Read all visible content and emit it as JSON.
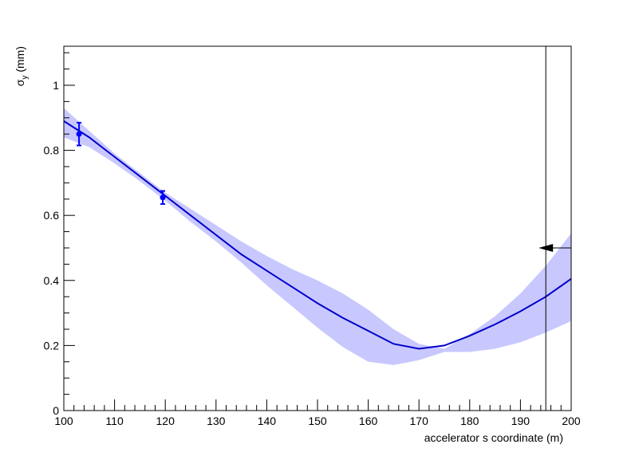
{
  "chart_data": {
    "type": "line",
    "xlabel": "accelerator s coordinate (m)",
    "ylabel": {
      "symbol": "σ",
      "subscript": "y",
      "unit": "(mm)"
    },
    "xlim": [
      100,
      200
    ],
    "ylim": [
      0,
      1.12
    ],
    "x_ticks": [
      100,
      110,
      120,
      130,
      140,
      150,
      160,
      170,
      180,
      190,
      200
    ],
    "y_ticks": [
      0,
      0.2,
      0.4,
      0.6,
      0.8,
      1
    ],
    "y_tick_labels": [
      "0",
      "0.2",
      "0.4",
      "0.6",
      "0.8",
      "1"
    ],
    "grid": false,
    "colors": {
      "line": "#0000cc",
      "band": "#c8c8ff",
      "marker": "#0000ff",
      "arrow": "#000000"
    },
    "series": [
      {
        "type": "line",
        "x": [
          100,
          105,
          110,
          115,
          120,
          125,
          130,
          135,
          140,
          145,
          150,
          155,
          160,
          165,
          170,
          175,
          180,
          185,
          190,
          195,
          200
        ],
        "y": [
          0.89,
          0.84,
          0.78,
          0.72,
          0.66,
          0.6,
          0.54,
          0.48,
          0.43,
          0.38,
          0.33,
          0.285,
          0.245,
          0.205,
          0.19,
          0.2,
          0.23,
          0.265,
          0.305,
          0.35,
          0.405
        ]
      },
      {
        "type": "band",
        "x": [
          100,
          105,
          110,
          115,
          120,
          125,
          130,
          135,
          140,
          145,
          150,
          155,
          160,
          165,
          170,
          175,
          180,
          185,
          190,
          195,
          200
        ],
        "upper": [
          0.93,
          0.86,
          0.79,
          0.73,
          0.67,
          0.62,
          0.57,
          0.52,
          0.475,
          0.435,
          0.4,
          0.36,
          0.31,
          0.25,
          0.205,
          0.19,
          0.235,
          0.29,
          0.36,
          0.445,
          0.545
        ],
        "lower": [
          0.84,
          0.81,
          0.76,
          0.705,
          0.645,
          0.58,
          0.52,
          0.455,
          0.385,
          0.32,
          0.255,
          0.195,
          0.15,
          0.14,
          0.155,
          0.18,
          0.18,
          0.19,
          0.21,
          0.24,
          0.275
        ]
      },
      {
        "type": "points",
        "x": [
          103,
          119.5
        ],
        "y": [
          0.85,
          0.655
        ],
        "yerr": [
          0.035,
          0.02
        ]
      }
    ],
    "marker_line": {
      "x": 195
    },
    "arrow": {
      "x_from": 200,
      "x_to": 195,
      "y": 0.5
    }
  }
}
